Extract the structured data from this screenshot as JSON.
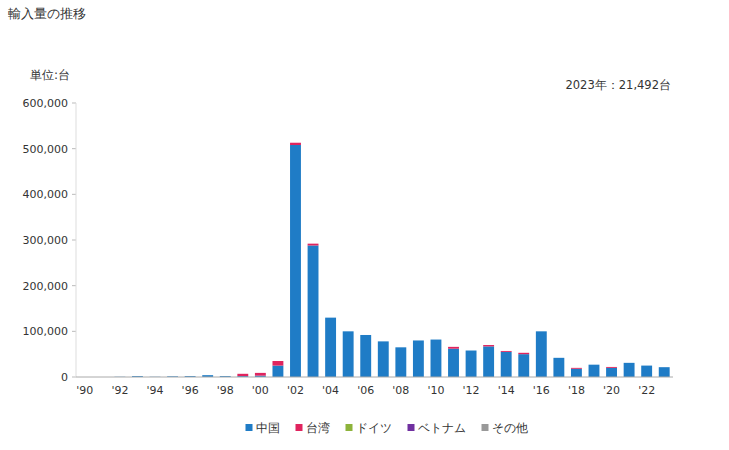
{
  "chart_data": {
    "type": "bar",
    "title": "輸入量の推移",
    "y_label": "単位:台",
    "annotation": "2023年：21,492台",
    "stacked": true,
    "grid": false,
    "legend": "bottom",
    "categories": [
      "'90",
      null,
      "'92",
      null,
      "'94",
      null,
      "'96",
      null,
      "'98",
      null,
      "'00",
      null,
      "'02",
      null,
      "'04",
      null,
      "'06",
      null,
      "'08",
      null,
      "'10",
      null,
      "'12",
      null,
      "'14",
      null,
      "'16",
      null,
      "'18",
      null,
      "'20",
      null,
      "'22",
      null
    ],
    "ylim": [
      0,
      600000
    ],
    "yticks": [
      0,
      {
        "value": 100000,
        "label": "100,000"
      },
      {
        "value": 200000,
        "label": "200,000"
      },
      {
        "value": 300000,
        "label": "300,000"
      },
      {
        "value": 400000,
        "label": "400,000"
      },
      {
        "value": 500000,
        "label": "500,000"
      },
      {
        "value": 600000,
        "label": "600,000"
      }
    ],
    "series": [
      {
        "name": "中国",
        "color": "#1f7cc6",
        "values": [
          0,
          0,
          500,
          2000,
          500,
          1500,
          2000,
          4000,
          2000,
          2000,
          3000,
          25000,
          508000,
          288000,
          130000,
          100000,
          92000,
          78000,
          65000,
          80000,
          82000,
          62000,
          58000,
          67000,
          55000,
          50000,
          100000,
          42000,
          18000,
          27000,
          20000,
          31000,
          25000,
          21492
        ]
      },
      {
        "name": "台湾",
        "color": "#e0245e",
        "values": [
          0,
          0,
          0,
          0,
          0,
          0,
          0,
          0,
          0,
          5000,
          6000,
          10000,
          5000,
          4000,
          0,
          0,
          0,
          0,
          0,
          0,
          0,
          4000,
          0,
          3000,
          2000,
          3000,
          0,
          0,
          2000,
          0,
          2000,
          0,
          0,
          0
        ]
      },
      {
        "name": "ドイツ",
        "color": "#8db33b",
        "values": [
          0,
          0,
          0,
          0,
          0,
          0,
          0,
          0,
          0,
          0,
          0,
          0,
          0,
          0,
          0,
          0,
          0,
          0,
          0,
          0,
          0,
          0,
          0,
          0,
          0,
          0,
          0,
          0,
          0,
          0,
          0,
          0,
          0,
          0
        ]
      },
      {
        "name": "ベトナム",
        "color": "#7030a0",
        "values": [
          0,
          0,
          0,
          0,
          0,
          0,
          0,
          0,
          0,
          0,
          0,
          0,
          0,
          0,
          0,
          0,
          0,
          0,
          0,
          0,
          0,
          0,
          0,
          0,
          0,
          0,
          0,
          0,
          0,
          0,
          0,
          0,
          0,
          0
        ]
      },
      {
        "name": "その他",
        "color": "#999999",
        "values": [
          0,
          0,
          0,
          0,
          0,
          0,
          0,
          0,
          0,
          0,
          0,
          0,
          0,
          0,
          0,
          0,
          0,
          0,
          0,
          0,
          0,
          0,
          0,
          0,
          0,
          0,
          0,
          0,
          0,
          0,
          0,
          0,
          0,
          0
        ]
      }
    ]
  }
}
